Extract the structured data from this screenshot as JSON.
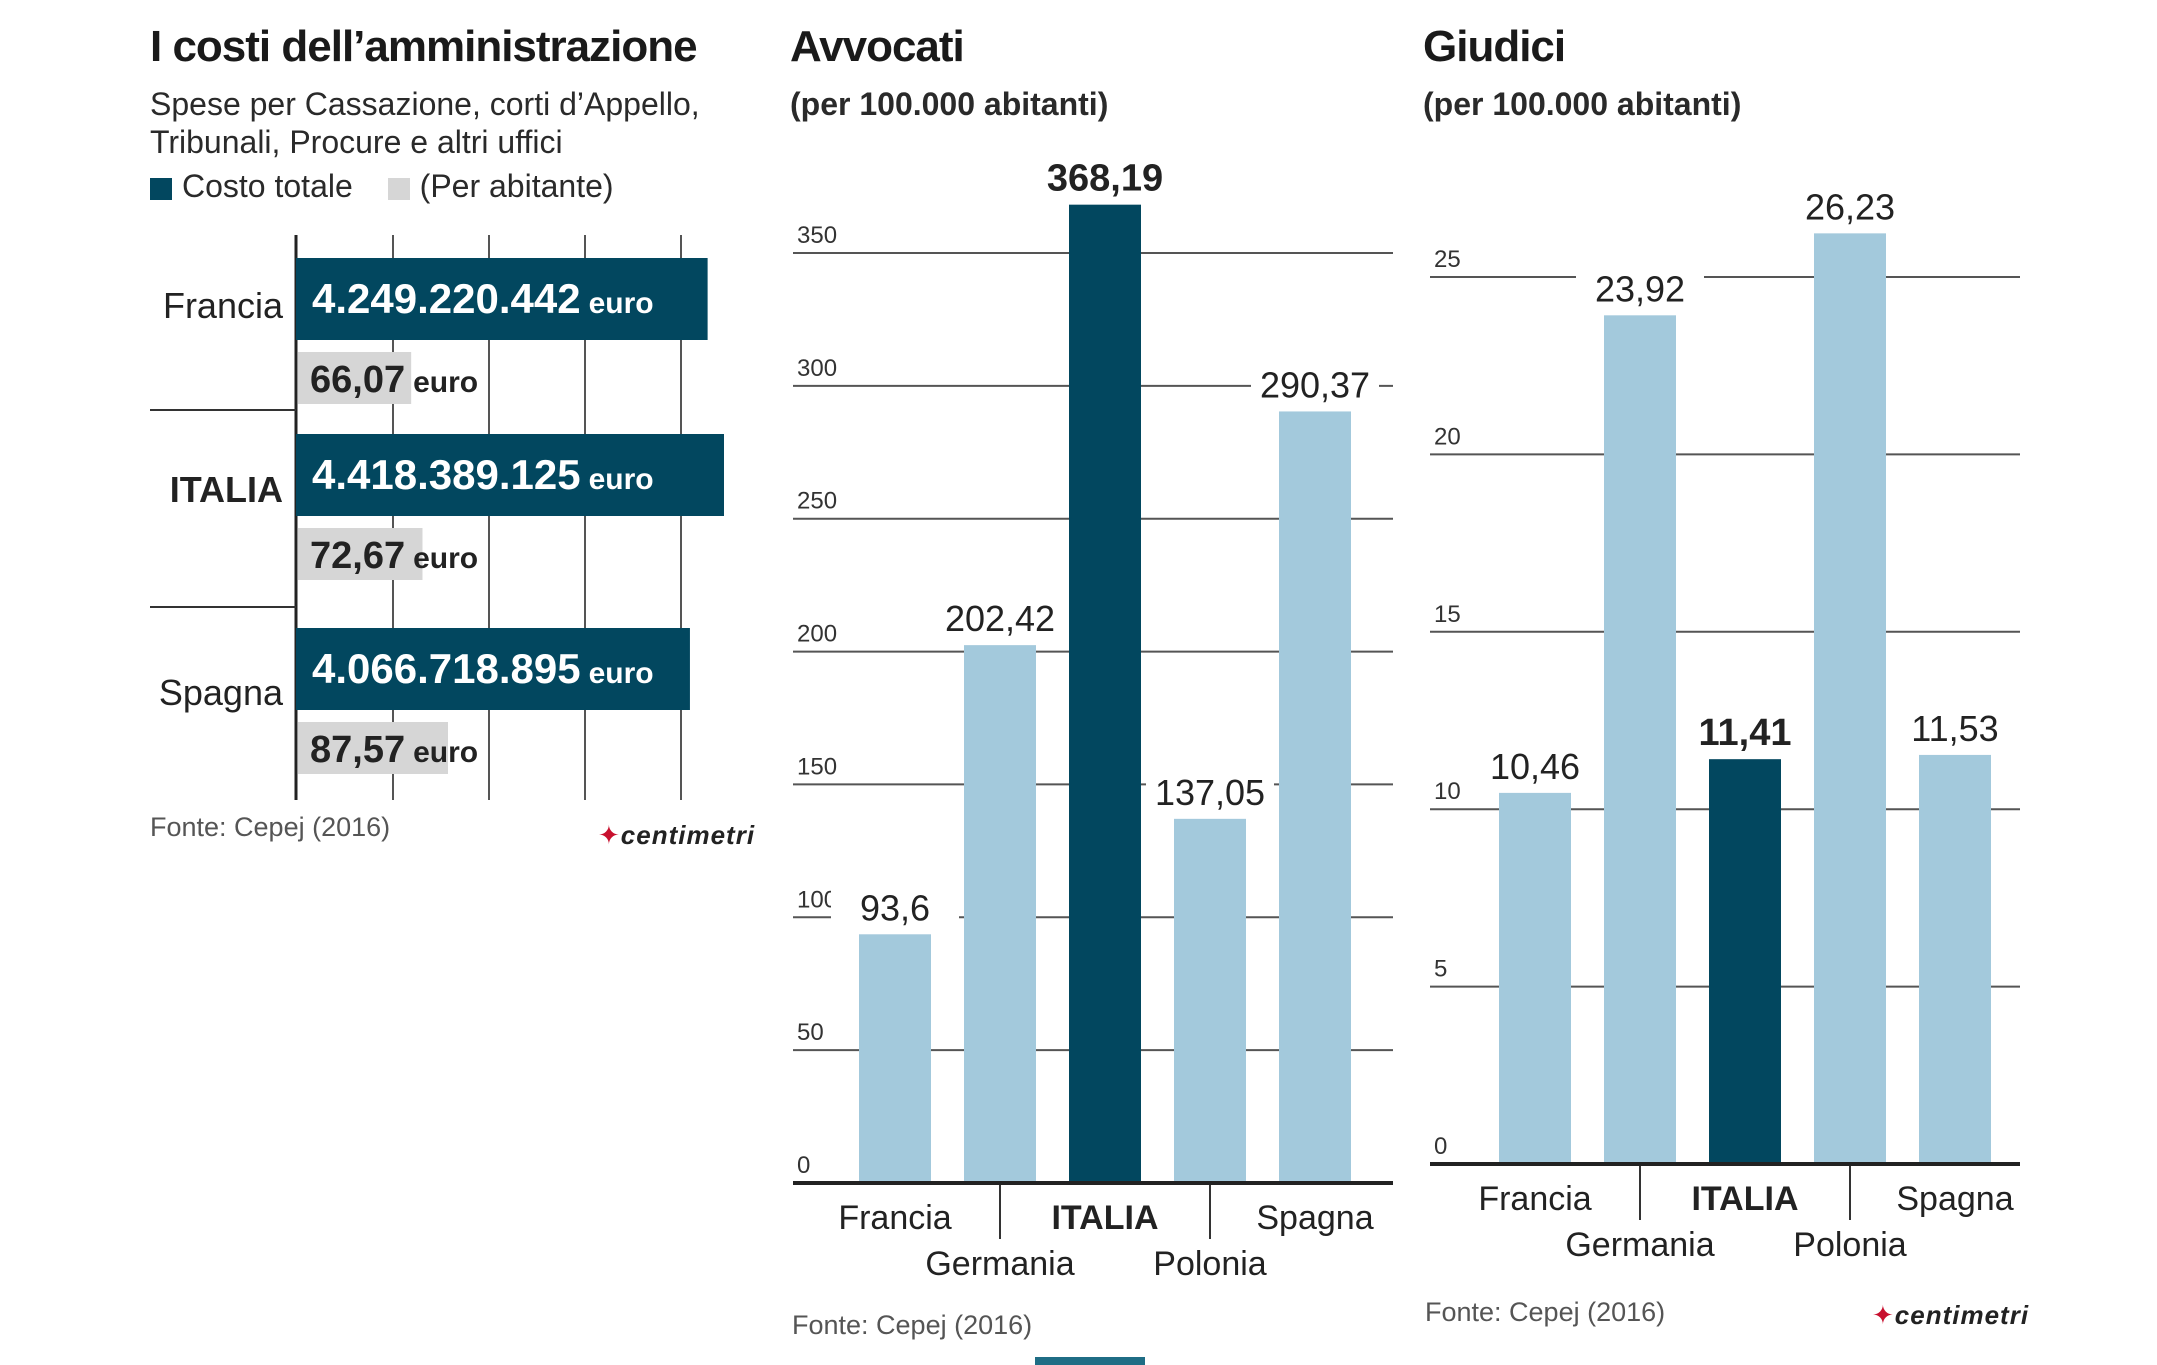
{
  "colors": {
    "dark_teal": "#02475f",
    "light_blue": "#a3c9dc",
    "light_gray": "#d6d6d6",
    "grid": "#555555",
    "logo_red": "#c8102e"
  },
  "panel_costi": {
    "title": "I costi dell’amministrazione",
    "subtitle_line1": "Spese per Cassazione, corti d’Appello,",
    "subtitle_line2": "Tribunali, Procure e altri uffici",
    "legend": {
      "item1": "Costo totale",
      "item2": "(Per abitante)"
    },
    "source": "Fonte: Cepej (2016)",
    "logo": "centimetri"
  },
  "panel_avvocati": {
    "title": "Avvocati",
    "subtitle": "(per 100.000 abitanti)",
    "source": "Fonte: Cepej (2016)"
  },
  "panel_giudici": {
    "title": "Giudici",
    "subtitle": "(per 100.000 abitanti)",
    "source": "Fonte: Cepej (2016)",
    "logo": "centimetri"
  },
  "chart_data": [
    {
      "type": "bar",
      "orientation": "horizontal",
      "title": "I costi dell’amministrazione",
      "subtitle": "Spese per Cassazione, corti d’Appello, Tribunali, Procure e altri uffici",
      "categories": [
        "Francia",
        "ITALIA",
        "Spagna"
      ],
      "series": [
        {
          "name": "Costo totale",
          "values": [
            4249220442,
            4418389125,
            4066718895
          ],
          "labels": [
            "4.249.220.442",
            "4.418.389.125",
            "4.066.718.895"
          ],
          "unit": "euro"
        },
        {
          "name": "(Per abitante)",
          "values": [
            66.07,
            72.67,
            87.57
          ],
          "labels": [
            "66,07",
            "72,67",
            "87,57"
          ],
          "unit": "euro"
        }
      ],
      "grid": true,
      "source": "Fonte: Cepej (2016)"
    },
    {
      "type": "bar",
      "title": "Avvocati",
      "subtitle": "(per 100.000 abitanti)",
      "categories": [
        "Francia",
        "Germania",
        "ITALIA",
        "Polonia",
        "Spagna"
      ],
      "values": [
        93.6,
        202.42,
        368.19,
        137.05,
        290.37
      ],
      "labels": [
        "93,6",
        "202,42",
        "368,19",
        "137,05",
        "290,37"
      ],
      "highlight": "ITALIA",
      "ylim": [
        0,
        350
      ],
      "yticks": [
        0,
        50,
        100,
        150,
        200,
        250,
        300,
        350
      ],
      "grid": true,
      "source": "Fonte: Cepej (2016)"
    },
    {
      "type": "bar",
      "title": "Giudici",
      "subtitle": "(per 100.000 abitanti)",
      "categories": [
        "Francia",
        "Germania",
        "ITALIA",
        "Polonia",
        "Spagna"
      ],
      "values": [
        10.46,
        23.92,
        11.41,
        26.23,
        11.53
      ],
      "labels": [
        "10,46",
        "23,92",
        "11,41",
        "26,23",
        "11,53"
      ],
      "highlight": "ITALIA",
      "ylim": [
        0,
        25
      ],
      "yticks": [
        0,
        5,
        10,
        15,
        20,
        25
      ],
      "grid": true,
      "source": "Fonte: Cepej (2016)"
    }
  ]
}
